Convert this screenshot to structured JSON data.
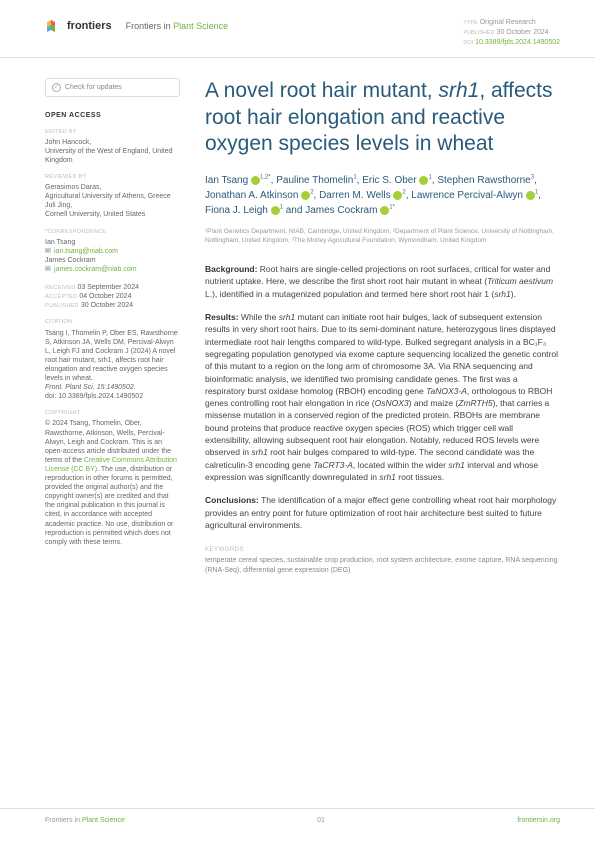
{
  "header": {
    "logo_text": "frontiers",
    "journal_prefix": "Frontiers in",
    "journal_name": "Plant Science",
    "type_label": "TYPE",
    "type_value": "Original Research",
    "pub_label": "PUBLISHED",
    "pub_value": "30 October 2024",
    "doi_label": "DOI",
    "doi_value": "10.3389/fpls.2024.1490502"
  },
  "sidebar": {
    "check_updates": "Check for updates",
    "open_access": "OPEN ACCESS",
    "edited_label": "EDITED BY",
    "edited_name": "John Hancock,",
    "edited_affil": "University of the West of England, United Kingdom",
    "reviewed_label": "REVIEWED BY",
    "reviewed_1_name": "Gerasimos Daras,",
    "reviewed_1_affil": "Agricultural University of Athens, Greece",
    "reviewed_2_name": "Juli Jing,",
    "reviewed_2_affil": "Cornell University, United States",
    "corr_label": "*CORRESPONDENCE",
    "corr_1_name": "Ian Tsang",
    "corr_1_email": "ian.tsang@niab.com",
    "corr_2_name": "James Cockram",
    "corr_2_email": "james.cockram@niab.com",
    "received_label": "RECEIVED",
    "received_value": "03 September 2024",
    "accepted_label": "ACCEPTED",
    "accepted_value": "04 October 2024",
    "published_label": "PUBLISHED",
    "published_value": "30 October 2024",
    "citation_label": "CITATION",
    "citation_text": "Tsang I, Thomelin P, Ober ES, Rawsthorne S, Atkinson JA, Wells DM, Percival-Alwyn L, Leigh FJ and Cockram J (2024) A novel root hair mutant, srh1, affects root hair elongation and reactive oxygen species levels in wheat.",
    "citation_journal": "Front. Plant Sci. 15:1490502.",
    "citation_doi": "doi: 10.3389/fpls.2024.1490502",
    "copyright_label": "COPYRIGHT",
    "copyright_text": "© 2024 Tsang, Thomelin, Ober, Rawsthorne, Atkinson, Wells, Percival-Alwyn, Leigh and Cockram. This is an open-access article distributed under the terms of the",
    "cc_link": "Creative Commons Attribution License (CC BY)",
    "copyright_rest": ". The use, distribution or reproduction in other forums is permitted, provided the original author(s) and the copyright owner(s) are credited and that the original publication in this journal is cited, in accordance with accepted academic practice. No use, distribution or reproduction is permitted which does not comply with these terms."
  },
  "content": {
    "title_p1": "A novel root hair mutant, ",
    "title_em": "srh1",
    "title_p2": ", affects root hair elongation and reactive oxygen species levels in wheat",
    "authors_html": "Ian Tsang |1,2*|, Pauline Thomelin|1|, Eric S. Ober |1|, Stephen Rawsthorne|3|, Jonathan A. Atkinson |2|, Darren M. Wells |2|, Lawrence Percival-Alwyn |1|, Fiona J. Leigh |1| and James Cockram |1*|",
    "affiliations": "¹Plant Genetics Department, NIAB, Cambridge, United Kingdom, ²Department of Plant Science, University of Nottingham, Nottingham, United Kingdom, ³The Morley Agricultural Foundation, Wymondham, United Kingdom",
    "bg_label": "Background:",
    "bg_text": "Root hairs are single-celled projections on root surfaces, critical for water and nutrient uptake. Here, we describe the first short root hair mutant in wheat (Triticum aestivum L.), identified in a mutagenized population and termed here short root hair 1 (srh1).",
    "res_label": "Results:",
    "res_text": "While the srh1 mutant can initiate root hair bulges, lack of subsequent extension results in very short root hairs. Due to its semi-dominant nature, heterozygous lines displayed intermediate root hair lengths compared to wild-type. Bulked segregant analysis in a BC₁F₃ segregating population genotyped via exome capture sequencing localized the genetic control of this mutant to a region on the long arm of chromosome 3A. Via RNA sequencing and bioinformatic analysis, we identified two promising candidate genes. The first was a respiratory burst oxidase homolog (RBOH) encoding gene TaNOX3-A, orthologous to RBOH genes controlling root hair elongation in rice (OsNOX3) and maize (ZmRTH5), that carries a missense mutation in a conserved region of the predicted protein. RBOHs are membrane bound proteins that produce reactive oxygen species (ROS) which trigger cell wall extensibility, allowing subsequent root hair elongation. Notably, reduced ROS levels were observed in srh1 root hair bulges compared to wild-type. The second candidate was the calreticulin-3 encoding gene TaCRT3-A, located within the wider srh1 interval and whose expression was significantly downregulated in srh1 root tissues.",
    "conc_label": "Conclusions:",
    "conc_text": "The identification of a major effect gene controlling wheat root hair morphology provides an entry point for future optimization of root hair architecture best suited to future agricultural environments.",
    "keywords_label": "KEYWORDS",
    "keywords": "temperate cereal species, sustainable crop production, root system architecture, exome capture, RNA sequencing (RNA-Seq), differential gene expression (DEG)"
  },
  "footer": {
    "left_prefix": "Frontiers in",
    "left_name": "Plant Science",
    "page": "01",
    "link": "frontiersin.org"
  },
  "colors": {
    "frontiers_green": "#6db33f",
    "title_blue": "#2a5a7a",
    "orcid_green": "#a6ce39",
    "text_gray": "#666666",
    "light_gray": "#999999",
    "border_gray": "#e0e0e0"
  }
}
